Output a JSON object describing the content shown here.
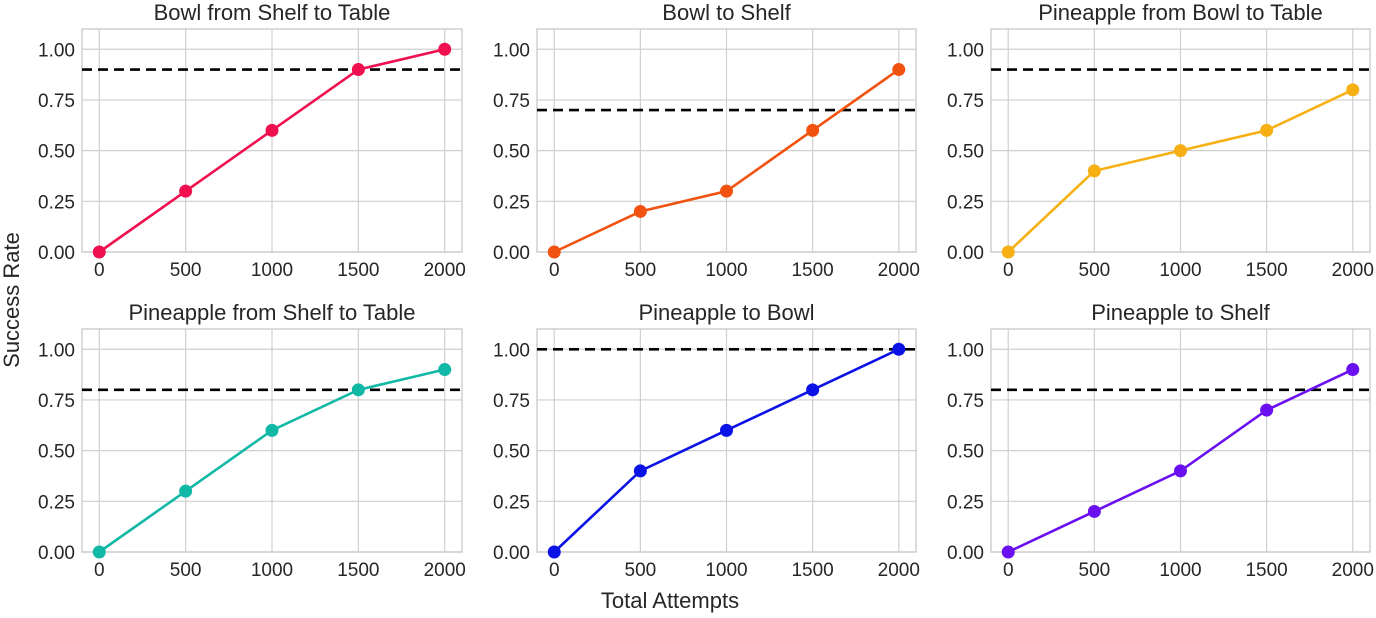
{
  "figure": {
    "xlabel": "Total Attempts",
    "ylabel": "Success Rate"
  },
  "chart_data": [
    {
      "type": "line",
      "title": "Bowl from Shelf to Table",
      "x": [
        0,
        500,
        1000,
        1500,
        2000
      ],
      "values": [
        0.0,
        0.3,
        0.6,
        0.9,
        1.0
      ],
      "threshold": 0.9,
      "color": "#f0104f",
      "xlim": [
        -100,
        2100
      ],
      "ylim": [
        0,
        1.1
      ],
      "xticks": [
        "0",
        "500",
        "1000",
        "1500",
        "2000"
      ],
      "yticks": [
        "0.00",
        "0.25",
        "0.50",
        "0.75",
        "1.00"
      ],
      "grid": true
    },
    {
      "type": "line",
      "title": "Bowl to Shelf",
      "x": [
        0,
        500,
        1000,
        1500,
        2000
      ],
      "values": [
        0.0,
        0.2,
        0.3,
        0.6,
        0.9
      ],
      "threshold": 0.7,
      "color": "#f2520f",
      "xlim": [
        -100,
        2100
      ],
      "ylim": [
        0,
        1.1
      ],
      "xticks": [
        "0",
        "500",
        "1000",
        "1500",
        "2000"
      ],
      "yticks": [
        "0.00",
        "0.25",
        "0.50",
        "0.75",
        "1.00"
      ],
      "grid": true
    },
    {
      "type": "line",
      "title": "Pineapple from Bowl to Table",
      "x": [
        0,
        500,
        1000,
        1500,
        2000
      ],
      "values": [
        0.0,
        0.4,
        0.5,
        0.6,
        0.8
      ],
      "threshold": 0.9,
      "color": "#f7b014",
      "xlim": [
        -100,
        2100
      ],
      "ylim": [
        0,
        1.1
      ],
      "xticks": [
        "0",
        "500",
        "1000",
        "1500",
        "2000"
      ],
      "yticks": [
        "0.00",
        "0.25",
        "0.50",
        "0.75",
        "1.00"
      ],
      "grid": true
    },
    {
      "type": "line",
      "title": "Pineapple from Shelf to Table",
      "x": [
        0,
        500,
        1000,
        1500,
        2000
      ],
      "values": [
        0.0,
        0.3,
        0.6,
        0.8,
        0.9
      ],
      "threshold": 0.8,
      "color": "#12b8a6",
      "xlim": [
        -100,
        2100
      ],
      "ylim": [
        0,
        1.1
      ],
      "xticks": [
        "0",
        "500",
        "1000",
        "1500",
        "2000"
      ],
      "yticks": [
        "0.00",
        "0.25",
        "0.50",
        "0.75",
        "1.00"
      ],
      "grid": true
    },
    {
      "type": "line",
      "title": "Pineapple to Bowl",
      "x": [
        0,
        500,
        1000,
        1500,
        2000
      ],
      "values": [
        0.0,
        0.4,
        0.6,
        0.8,
        1.0
      ],
      "threshold": 1.0,
      "color": "#0a12e6",
      "xlim": [
        -100,
        2100
      ],
      "ylim": [
        0,
        1.1
      ],
      "xticks": [
        "0",
        "500",
        "1000",
        "1500",
        "2000"
      ],
      "yticks": [
        "0.00",
        "0.25",
        "0.50",
        "0.75",
        "1.00"
      ],
      "grid": true
    },
    {
      "type": "line",
      "title": "Pineapple to Shelf",
      "x": [
        0,
        500,
        1000,
        1500,
        2000
      ],
      "values": [
        0.0,
        0.2,
        0.4,
        0.7,
        0.9
      ],
      "threshold": 0.8,
      "color": "#6a0ff0",
      "xlim": [
        -100,
        2100
      ],
      "ylim": [
        0,
        1.1
      ],
      "xticks": [
        "0",
        "500",
        "1000",
        "1500",
        "2000"
      ],
      "yticks": [
        "0.00",
        "0.25",
        "0.50",
        "0.75",
        "1.00"
      ],
      "grid": true
    }
  ]
}
